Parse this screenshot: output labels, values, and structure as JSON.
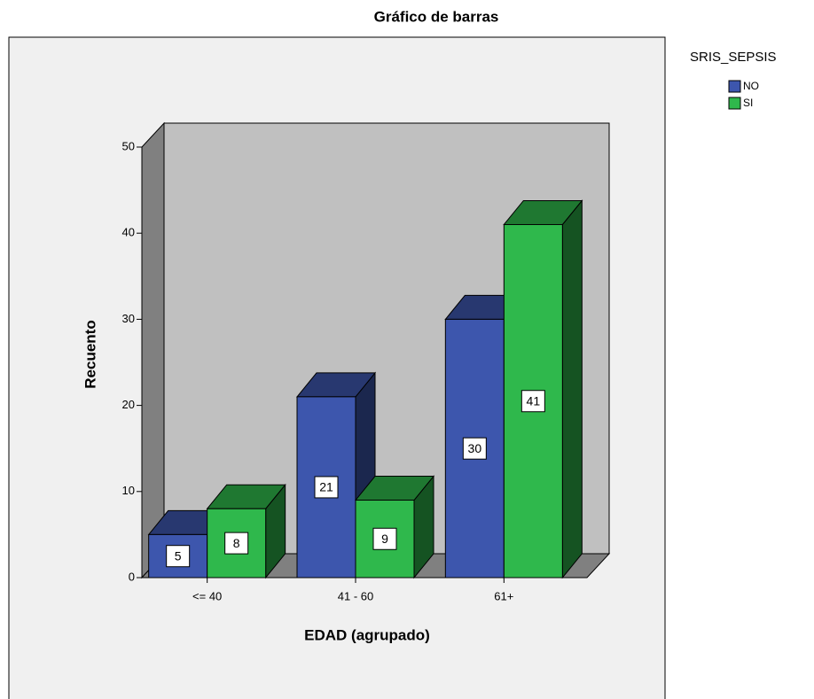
{
  "chart_data": {
    "type": "bar3d",
    "title": "Gráfico de barras",
    "x_label": "EDAD (agrupado)",
    "y_label": "Recuento",
    "legend_title": "SRIS_SEPSIS",
    "categories": [
      "<= 40",
      "41 - 60",
      "61+"
    ],
    "series": [
      {
        "name": "NO",
        "color": "#3d56ad",
        "values": [
          5,
          21,
          30
        ]
      },
      {
        "name": "SI",
        "color": "#2fb84c",
        "values": [
          8,
          9,
          41
        ]
      }
    ],
    "ylim": [
      0,
      50
    ],
    "yticks": [
      0,
      10,
      20,
      30,
      40,
      50
    ]
  }
}
